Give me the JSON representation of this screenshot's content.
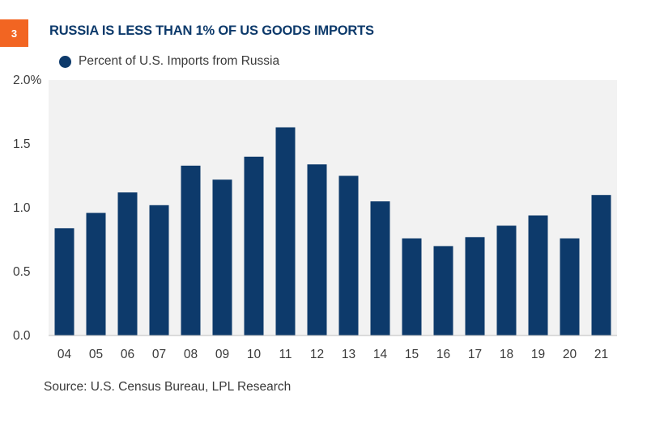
{
  "badge": "3",
  "colors": {
    "accent": "#f26522",
    "bar": "#0d3a6b",
    "plot_background": "#f2f2f2"
  },
  "chart_data": {
    "type": "bar",
    "title": "RUSSIA IS LESS THAN 1% OF US GOODS IMPORTS",
    "source": "Source: U.S. Census Bureau, LPL Research",
    "categories": [
      "04",
      "05",
      "06",
      "07",
      "08",
      "09",
      "10",
      "11",
      "12",
      "13",
      "14",
      "15",
      "16",
      "17",
      "18",
      "19",
      "20",
      "21"
    ],
    "series": [
      {
        "name": "Percent of U.S. Imports from Russia",
        "values": [
          0.84,
          0.96,
          1.12,
          1.02,
          1.33,
          1.22,
          1.4,
          1.63,
          1.34,
          1.25,
          1.05,
          0.76,
          0.7,
          0.77,
          0.86,
          0.94,
          0.76,
          1.1
        ]
      }
    ],
    "ylim": [
      0,
      2.0
    ],
    "yticks": [
      "0.0",
      "0.5",
      "1.0",
      "1.5",
      "2.0%"
    ],
    "grid": false,
    "legend_position": "top-left"
  }
}
